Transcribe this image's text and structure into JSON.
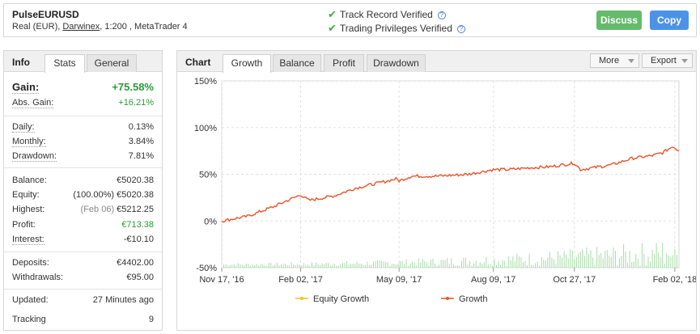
{
  "header": {
    "title": "PulseEURUSD",
    "account_type": "Real (EUR),",
    "broker": "Darwinex",
    "leverage_platform": ", 1:200 , MetaTrader 4",
    "verified": [
      {
        "label": "Track Record Verified",
        "icon": "check-icon"
      },
      {
        "label": "Trading Privileges Verified",
        "icon": "check-icon"
      }
    ],
    "discuss_label": "Discuss",
    "copy_label": "Copy"
  },
  "info": {
    "panel_label": "Info",
    "tabs": [
      "Stats",
      "General"
    ],
    "gain": {
      "label": "Gain:",
      "value": "+75.58%"
    },
    "abs_gain": {
      "label": "Abs. Gain:",
      "value": "+16.21%"
    },
    "daily": {
      "label": "Daily:",
      "value": "0.13%"
    },
    "monthly": {
      "label": "Monthly:",
      "value": "3.84%"
    },
    "drawdown": {
      "label": "Drawdown:",
      "value": "7.81%"
    },
    "balance": {
      "label": "Balance:",
      "value": "€5020.38"
    },
    "equity": {
      "label": "Equity:",
      "note": "(100.00%)",
      "value": "€5020.38"
    },
    "highest": {
      "label": "Highest:",
      "note": "(Feb 06)",
      "value": "€5212.25"
    },
    "profit": {
      "label": "Profit:",
      "value": "€713.38"
    },
    "interest": {
      "label": "Interest:",
      "value": "-€10.10"
    },
    "deposits": {
      "label": "Deposits:",
      "value": "€4402.00"
    },
    "withdrawals": {
      "label": "Withdrawals:",
      "value": "€95.00"
    },
    "updated": {
      "label": "Updated:",
      "value": "27 Minutes ago"
    },
    "tracking": {
      "label": "Tracking",
      "value": "9"
    }
  },
  "chart_panel": {
    "label": "Chart",
    "tabs": [
      "Growth",
      "Balance",
      "Profit",
      "Drawdown"
    ],
    "active_tab": "Growth",
    "more_label": "More",
    "export_label": "Export"
  },
  "chart_data": {
    "type": "line",
    "title": "",
    "xlabel": "",
    "ylabel": "",
    "ylim": [
      -50,
      150
    ],
    "y_ticks": [
      "150%",
      "100%",
      "50%",
      "0%",
      "-50%"
    ],
    "y_tick_values": [
      150,
      100,
      50,
      0,
      -50
    ],
    "x_ticks": [
      "Nov 17, '16",
      "Feb 02, '17",
      "May 09, '17",
      "Aug 09, '17",
      "Oct 27, '17",
      "Feb 02, '18"
    ],
    "x_tick_days": [
      0,
      77,
      173,
      265,
      344,
      442
    ],
    "x_range_days": [
      0,
      446
    ],
    "legend": [
      "Equity Growth",
      "Growth"
    ],
    "legend_position": "bottom",
    "series": [
      {
        "name": "Growth",
        "color": "#e8542a",
        "points": [
          [
            0,
            0
          ],
          [
            25,
            5
          ],
          [
            50,
            15
          ],
          [
            60,
            20
          ],
          [
            77,
            28
          ],
          [
            85,
            22
          ],
          [
            110,
            27
          ],
          [
            130,
            35
          ],
          [
            150,
            40
          ],
          [
            170,
            45
          ],
          [
            173,
            43
          ],
          [
            185,
            48
          ],
          [
            210,
            48
          ],
          [
            240,
            50
          ],
          [
            265,
            55
          ],
          [
            280,
            55
          ],
          [
            300,
            57
          ],
          [
            320,
            58
          ],
          [
            344,
            62
          ],
          [
            350,
            55
          ],
          [
            380,
            60
          ],
          [
            400,
            67
          ],
          [
            420,
            70
          ],
          [
            430,
            73
          ],
          [
            440,
            80
          ],
          [
            446,
            75
          ]
        ]
      },
      {
        "name": "Equity Growth",
        "color": "#f5c21a",
        "points": []
      }
    ],
    "volume_color": "#a8dca8"
  }
}
